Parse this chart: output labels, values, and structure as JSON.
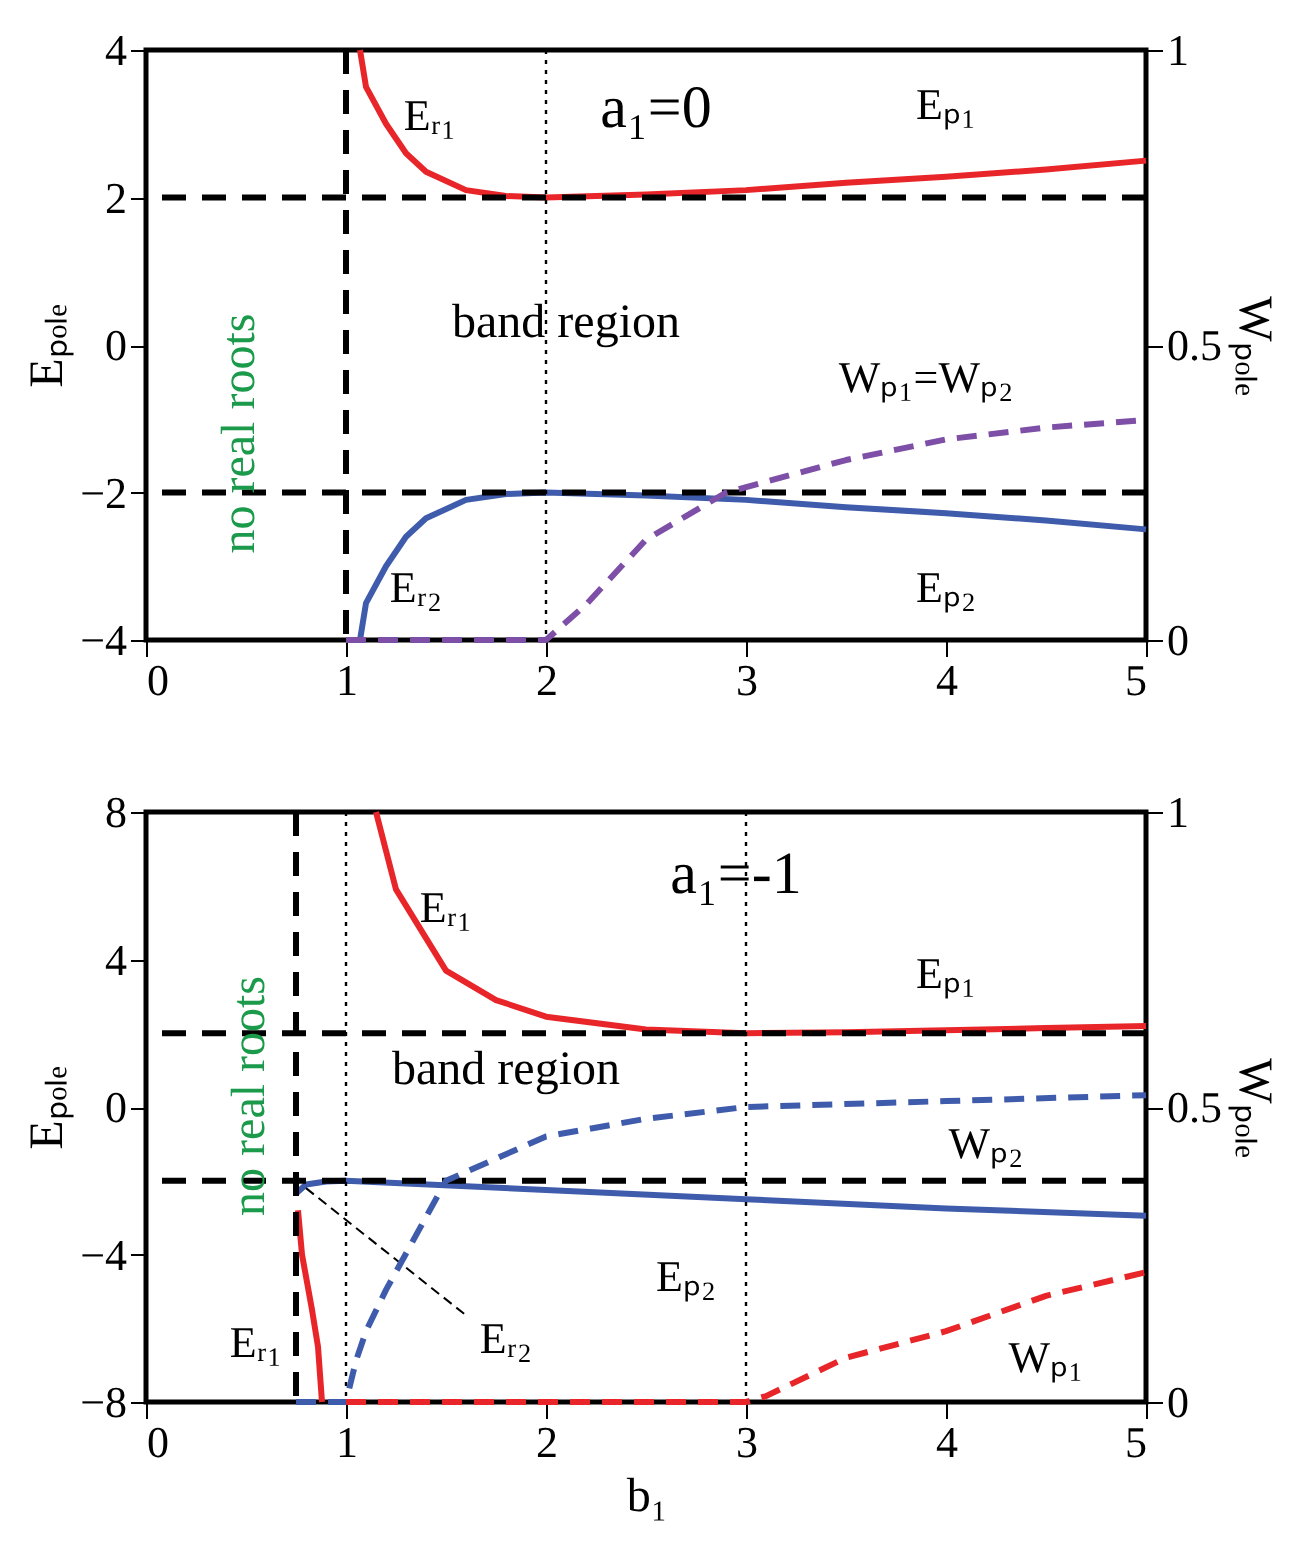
{
  "chart_data": [
    {
      "type": "line",
      "title": "a₁=0",
      "ylabel": "Eₚₒₗₑ",
      "y2label": "Wₚₒₗₑ",
      "xlim": [
        0,
        5
      ],
      "xticks": [
        0,
        1,
        2,
        3,
        4,
        5
      ],
      "ylim": [
        -4,
        4
      ],
      "yticks": [
        -4,
        -2,
        0,
        2,
        4
      ],
      "y2lim": [
        0,
        1
      ],
      "y2ticks": [
        0,
        0.5,
        1
      ],
      "grid": false,
      "marker": "none",
      "line_style": "solid",
      "annotations": [
        "no real roots",
        "band region",
        "Eₚ₁",
        "Eₚ₂"
      ],
      "ref_lines": [
        {
          "axis": "y",
          "value": 2,
          "color": "#000000",
          "line_style": "dashed"
        },
        {
          "axis": "y",
          "value": -2,
          "color": "#000000",
          "line_style": "dashed"
        },
        {
          "axis": "x",
          "value": 1,
          "color": "#000000",
          "line_style": "dashed"
        },
        {
          "axis": "x",
          "value": 2,
          "color": "#000000",
          "line_style": "dotted"
        }
      ],
      "series": [
        {
          "name": "Eᵣ₁",
          "color": "#e8262a",
          "x": [
            1.07,
            1.1,
            1.2,
            1.3,
            1.4,
            1.6,
            1.8,
            2,
            2.5,
            3,
            3.5,
            4,
            4.5,
            5
          ],
          "values": [
            4,
            3.5,
            3.0,
            2.6,
            2.35,
            2.1,
            2.02,
            2,
            2.04,
            2.1,
            2.2,
            2.28,
            2.38,
            2.5
          ]
        },
        {
          "name": "Eᵣ₂",
          "color": "#3f5bab",
          "x": [
            1.07,
            1.1,
            1.2,
            1.3,
            1.4,
            1.6,
            1.8,
            2,
            2.5,
            3,
            3.5,
            4,
            4.5,
            5
          ],
          "values": [
            -4,
            -3.5,
            -3.0,
            -2.6,
            -2.35,
            -2.1,
            -2.02,
            -2,
            -2.04,
            -2.1,
            -2.2,
            -2.28,
            -2.38,
            -2.5
          ]
        },
        {
          "name": "Wₚ₁=Wₚ₂",
          "color": "#7e4fa6",
          "axis": "y2",
          "line_style": "dashed",
          "x": [
            1,
            2,
            2.2,
            2.5,
            2.9,
            3.5,
            4,
            4.5,
            5
          ],
          "values": [
            0,
            0,
            0.06,
            0.17,
            0.25,
            0.305,
            0.34,
            0.36,
            0.373
          ]
        }
      ]
    },
    {
      "type": "line",
      "title": "a₁=-1",
      "xlabel": "b₁",
      "ylabel": "Eₚₒₗₑ",
      "y2label": "Wₚₒₗₑ",
      "xlim": [
        0,
        5
      ],
      "xticks": [
        0,
        1,
        2,
        3,
        4,
        5
      ],
      "ylim": [
        -8,
        8
      ],
      "yticks": [
        -8,
        -4,
        0,
        4,
        8
      ],
      "y2lim": [
        0,
        1
      ],
      "y2ticks": [
        0,
        0.5,
        1
      ],
      "grid": false,
      "marker": "none",
      "line_style": "solid",
      "annotations": [
        "no real roots",
        "band region",
        "Eₚ₁",
        {
          "text": "Eᵣ₂",
          "x": 0.8,
          "y": -2.2
        }
      ],
      "ref_lines": [
        {
          "axis": "y",
          "value": 2,
          "color": "#000000",
          "line_style": "dashed"
        },
        {
          "axis": "y",
          "value": -2,
          "color": "#000000",
          "line_style": "dashed"
        },
        {
          "axis": "x",
          "value": 0.75,
          "color": "#000000",
          "line_style": "dashed"
        },
        {
          "axis": "x",
          "value": 1,
          "color": "#000000",
          "line_style": "dotted"
        },
        {
          "axis": "x",
          "value": 3,
          "color": "#000000",
          "line_style": "dotted"
        }
      ],
      "series": [
        {
          "name": "Eᵣ₁",
          "color": "#e8262a",
          "x": [
            1.15,
            1.25,
            1.5,
            1.75,
            2,
            2.5,
            3,
            3.5,
            4,
            4.5,
            5
          ],
          "values": [
            8,
            5.9,
            3.7,
            2.9,
            2.45,
            2.1,
            2.0,
            2.03,
            2.08,
            2.14,
            2.2
          ]
        },
        {
          "name": "Eᵣ₁",
          "color": "#e8262a",
          "x": [
            0.76,
            0.78,
            0.83,
            0.86,
            0.88
          ],
          "values": [
            -2.8,
            -4,
            -5.5,
            -6.5,
            -8
          ]
        },
        {
          "name": "Eₚ₂",
          "color": "#3f5bab",
          "x": [
            0.75,
            0.8,
            0.9,
            1,
            2,
            3,
            4,
            5
          ],
          "values": [
            -2.35,
            -2.1,
            -2.02,
            -2,
            -2.25,
            -2.5,
            -2.75,
            -2.95
          ]
        },
        {
          "name": "Wₚ₂",
          "color": "#3f5bab",
          "axis": "y2",
          "line_style": "dashed",
          "x": [
            0.75,
            1,
            1.05,
            1.1,
            1.2,
            1.5,
            2,
            2.5,
            3,
            4,
            5
          ],
          "values": [
            0,
            0,
            0.07,
            0.12,
            0.19,
            0.375,
            0.45,
            0.48,
            0.5,
            0.51,
            0.52
          ]
        },
        {
          "name": "Wₚ₁",
          "color": "#e8262a",
          "axis": "y2",
          "line_style": "dashed",
          "x": [
            1,
            3,
            3.1,
            3.5,
            4,
            4.5,
            5
          ],
          "values": [
            0,
            0,
            0.01,
            0.075,
            0.12,
            0.18,
            0.22
          ]
        }
      ]
    }
  ]
}
